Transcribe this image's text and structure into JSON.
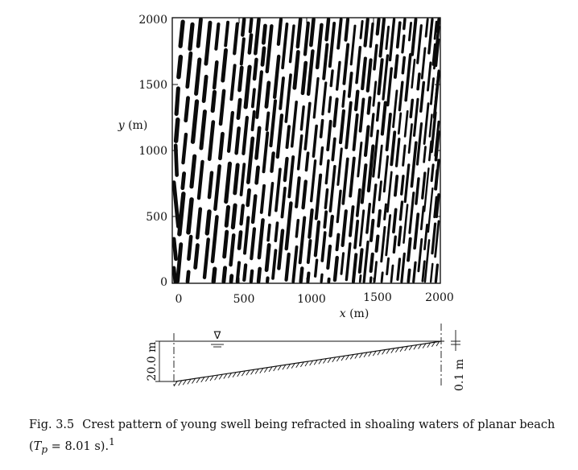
{
  "chart_data": {
    "type": "image",
    "xlabel": {
      "var": "x",
      "unit": "(m)"
    },
    "ylabel": {
      "var": "y",
      "unit": "(m)"
    },
    "xlim": [
      0,
      2000
    ],
    "ylim": [
      0,
      2000
    ],
    "xticks": [
      "0",
      "500",
      "1000",
      "1500",
      "2000"
    ],
    "yticks": [
      "0",
      "500",
      "1000",
      "1500",
      "2000"
    ],
    "grid": false,
    "content": "black wave-crest streaks on white, denser toward x = 2000"
  },
  "profile": {
    "depth_label": "20.0 m",
    "shore_label": "0.1 m",
    "water_level_symbol": "∇"
  },
  "caption": {
    "label": "Fig. 3.5",
    "text_line1": "Crest pattern of young swell being refracted in shoaling waters of planar beach",
    "text_line2_prefix": "(",
    "tp_symbol": "T",
    "tp_subscript": "p",
    "tp_value": " = 8.01 s).",
    "footnote": "1"
  }
}
